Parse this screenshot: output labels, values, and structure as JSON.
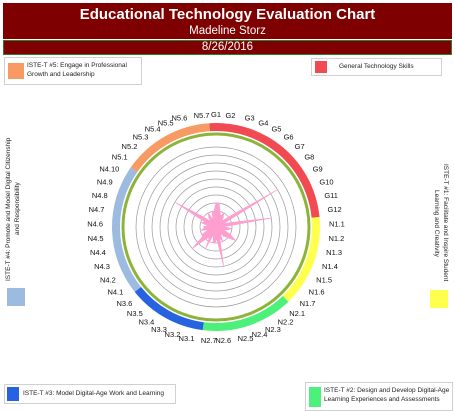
{
  "header": {
    "title": "Educational Technology Evaluation Chart",
    "subtitle": "Madeline Storz",
    "date": "8/26/2016"
  },
  "legend": {
    "t5": "ISTE-T #5: Engage in Professional Growth and Leadership",
    "gen": "General Technology Skills",
    "t4": "ISTE-T #4: Promote and Model Digital Citizenship and Responsibility",
    "t1": "ISTE-T #1: Facilitate and Inspire Student Learning and Creativity",
    "t3": "ISTE-T #3: Model Digital-Age Work and Learning",
    "t2": "ISTE-T #2: Design and Develop Digital-Age Learning Experiences and Assessments"
  },
  "colors": {
    "header_bg": "#7f0000",
    "series": "#ff9fd0",
    "inner_ring": "#8db43a",
    "t5": "#f79a64",
    "gen": "#f24a52",
    "t1": "#ffff4d",
    "t2": "#4df07a",
    "t3": "#2563e0",
    "t4": "#9dbae0"
  },
  "chart_data": {
    "type": "radar",
    "rmax": 10,
    "ring_count": 10,
    "categories": [
      "G1",
      "G2",
      "G3",
      "G4",
      "G5",
      "G6",
      "G7",
      "G8",
      "G9",
      "G10",
      "G11",
      "G12",
      "N1.1",
      "N1.2",
      "N1.3",
      "N1.4",
      "N1.5",
      "N1.6",
      "N1.7",
      "N2.1",
      "N2.2",
      "N2.3",
      "N2.4",
      "N2.5",
      "N2.6",
      "N2.7",
      "N3.1",
      "N3.2",
      "N3.3",
      "N3.4",
      "N3.5",
      "N3.6",
      "N4.1",
      "N4.2",
      "N4.3",
      "N4.4",
      "N4.5",
      "N4.6",
      "N4.7",
      "N4.8",
      "N4.9",
      "N4.10",
      "N5.1",
      "N5.2",
      "N5.3",
      "N5.4",
      "N5.5",
      "N5.6",
      "N5.7"
    ],
    "values": [
      3,
      3,
      2,
      1.5,
      2,
      1.5,
      1,
      2,
      9,
      1,
      2,
      7,
      1,
      2,
      1.5,
      1,
      2,
      3,
      2,
      1.5,
      1,
      2,
      1.5,
      5,
      1.5,
      2,
      2,
      1,
      3,
      1.5,
      2,
      4,
      2,
      2,
      1,
      2,
      1.5,
      1.5,
      1,
      2,
      1.5,
      6,
      2,
      1,
      1.5,
      2,
      1,
      2,
      2
    ],
    "bands": [
      {
        "key": "gen",
        "start": 0,
        "end": 11
      },
      {
        "key": "t1",
        "start": 12,
        "end": 18
      },
      {
        "key": "t2",
        "start": 19,
        "end": 25
      },
      {
        "key": "t3",
        "start": 26,
        "end": 31
      },
      {
        "key": "t4",
        "start": 32,
        "end": 41
      },
      {
        "key": "t5",
        "start": 42,
        "end": 48
      }
    ]
  }
}
